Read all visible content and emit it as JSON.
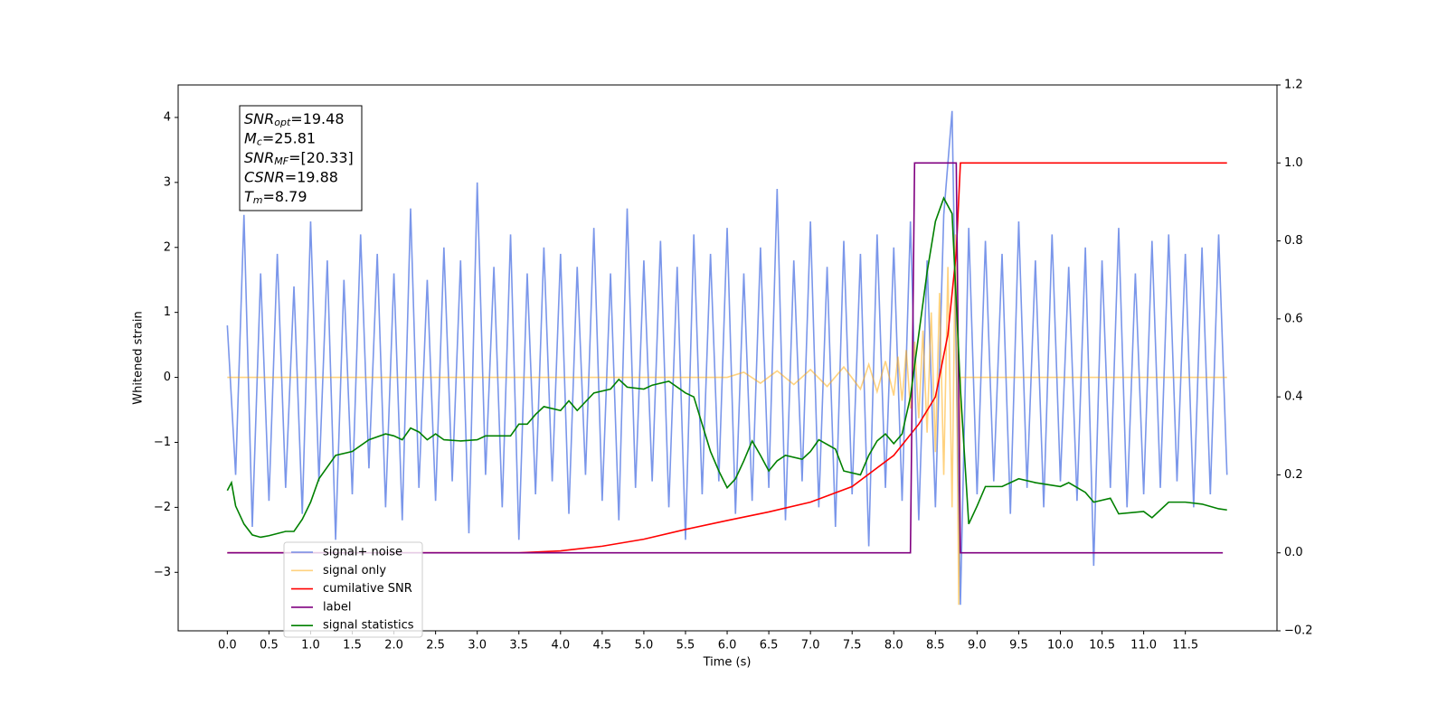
{
  "chart_data": {
    "type": "line",
    "xlabel": "Time (s)",
    "ylabel": "Whitened strain",
    "xlim": [
      -0.59,
      12.6
    ],
    "ylim": [
      -3.9,
      4.5
    ],
    "y2lim": [
      -0.2,
      1.2
    ],
    "xticks": [
      {
        "value": 0,
        "label": "0.0"
      },
      0.5,
      {
        "value": 1,
        "label": "1.0"
      },
      1.5,
      {
        "value": 2,
        "label": "2.0"
      },
      2.5,
      {
        "value": 3,
        "label": "3.0"
      },
      3.5,
      {
        "value": 4,
        "label": "4.0"
      },
      4.5,
      {
        "value": 5,
        "label": "5.0"
      },
      5.5,
      {
        "value": 6,
        "label": "6.0"
      },
      6.5,
      {
        "value": 7,
        "label": "7.0"
      },
      7.5,
      {
        "value": 8,
        "label": "8.0"
      },
      8.5,
      {
        "value": 9,
        "label": "9.0"
      },
      9.5,
      {
        "value": 10,
        "label": "10.0"
      },
      10.5,
      {
        "value": 11,
        "label": "11.0"
      },
      11.5
    ],
    "yticks": [
      {
        "value": -3,
        "label": "−3"
      },
      {
        "value": -2,
        "label": "−2"
      },
      {
        "value": -1,
        "label": "−1"
      },
      0,
      1,
      2,
      3,
      4
    ],
    "y2ticks": [
      {
        "value": -0.2,
        "label": "−0.2"
      },
      {
        "value": 0,
        "label": "0.0"
      },
      0.2,
      0.4,
      0.6,
      0.8,
      {
        "value": 1,
        "label": "1.0"
      },
      1.2
    ],
    "legend": "lower left",
    "annotation": [
      {
        "symbol": "SNR",
        "sub": "opt",
        "text": "=19.48"
      },
      {
        "symbol": "M",
        "sub": "c",
        "text": "=25.81"
      },
      {
        "symbol": "SNR",
        "sub": "MF",
        "text": "=[20.33]"
      },
      {
        "symbol": "CSNR",
        "text": "=19.88"
      },
      {
        "symbol": "T",
        "sub": "m",
        "text": "=8.79"
      }
    ],
    "series": [
      {
        "name": "signal+ noise",
        "color": "#4169e1",
        "alpha": 0.7,
        "x": [
          0,
          0.1,
          0.2,
          0.3,
          0.4,
          0.5,
          0.6,
          0.7,
          0.8,
          0.9,
          1,
          1.1,
          1.2,
          1.3,
          1.4,
          1.5,
          1.6,
          1.7,
          1.8,
          1.9,
          2,
          2.1,
          2.2,
          2.3,
          2.4,
          2.5,
          2.6,
          2.7,
          2.8,
          2.9,
          3,
          3.1,
          3.2,
          3.3,
          3.4,
          3.5,
          3.6,
          3.7,
          3.8,
          3.9,
          4,
          4.1,
          4.2,
          4.3,
          4.4,
          4.5,
          4.6,
          4.7,
          4.8,
          4.9,
          5,
          5.1,
          5.2,
          5.3,
          5.4,
          5.5,
          5.6,
          5.7,
          5.8,
          5.9,
          6,
          6.1,
          6.2,
          6.3,
          6.4,
          6.5,
          6.6,
          6.7,
          6.8,
          6.9,
          7,
          7.1,
          7.2,
          7.3,
          7.4,
          7.5,
          7.6,
          7.7,
          7.8,
          7.9,
          8,
          8.1,
          8.2,
          8.3,
          8.4,
          8.5,
          8.6,
          8.7,
          8.8,
          8.9,
          9,
          9.1,
          9.2,
          9.3,
          9.4,
          9.5,
          9.6,
          9.7,
          9.8,
          9.9,
          10,
          10.1,
          10.2,
          10.3,
          10.4,
          10.5,
          10.6,
          10.7,
          10.8,
          10.9,
          11,
          11.1,
          11.2,
          11.3,
          11.4,
          11.5,
          11.6,
          11.7,
          11.8,
          11.9,
          12
        ],
        "values": [
          0.8,
          -1.5,
          2.5,
          -2.3,
          1.6,
          -1.9,
          1.9,
          -1.7,
          1.4,
          -2.1,
          2.4,
          -1.6,
          1.8,
          -2.5,
          1.5,
          -1.8,
          2.2,
          -1.4,
          1.9,
          -2.0,
          1.6,
          -2.2,
          2.6,
          -1.7,
          1.5,
          -1.9,
          2.0,
          -1.6,
          1.8,
          -2.4,
          3.0,
          -1.5,
          1.7,
          -2.0,
          2.2,
          -2.5,
          1.6,
          -1.8,
          2.0,
          -1.6,
          1.9,
          -2.1,
          1.7,
          -1.5,
          2.3,
          -1.9,
          1.6,
          -2.2,
          2.6,
          -1.7,
          1.8,
          -1.6,
          2.1,
          -2.0,
          1.7,
          -2.5,
          2.2,
          -1.8,
          1.9,
          -1.6,
          2.3,
          -2.1,
          1.6,
          -1.9,
          2.0,
          -1.7,
          2.9,
          -2.2,
          1.8,
          -1.6,
          2.4,
          -2.0,
          1.7,
          -2.3,
          2.1,
          -1.8,
          1.9,
          -2.6,
          2.2,
          -1.7,
          2.0,
          -1.9,
          2.4,
          -2.2,
          1.8,
          -2.0,
          2.5,
          4.1,
          -3.5,
          2.3,
          -1.8,
          2.1,
          -1.6,
          1.9,
          -2.1,
          2.4,
          -1.7,
          1.8,
          -2.0,
          2.2,
          -1.6,
          1.7,
          -1.9,
          2.0,
          -2.9,
          1.8,
          -1.7,
          2.3,
          -2.0,
          1.6,
          -1.8,
          2.1,
          -1.7,
          2.2,
          -1.6,
          1.9,
          -2.0,
          2.0,
          -1.8,
          2.2,
          -1.5
        ]
      },
      {
        "name": "signal only",
        "color": "#ffa500",
        "alpha": 0.5,
        "x": [
          0,
          6.0,
          6.2,
          6.4,
          6.6,
          6.8,
          7.0,
          7.2,
          7.4,
          7.6,
          7.7,
          7.8,
          7.9,
          8.0,
          8.05,
          8.1,
          8.15,
          8.2,
          8.25,
          8.3,
          8.35,
          8.4,
          8.45,
          8.5,
          8.55,
          8.6,
          8.65,
          8.7,
          8.74,
          8.78,
          8.8,
          12.0
        ],
        "values": [
          0,
          0,
          0.08,
          -0.09,
          0.1,
          -0.11,
          0.12,
          -0.14,
          0.16,
          -0.18,
          0.2,
          -0.22,
          0.25,
          -0.28,
          0.32,
          -0.36,
          0.42,
          -0.48,
          0.55,
          -0.63,
          0.72,
          -0.85,
          1.0,
          -1.15,
          1.3,
          -1.5,
          1.7,
          -2.0,
          2.2,
          -3.5,
          0,
          0
        ]
      },
      {
        "name": "cumilative SNR",
        "color": "#ff0000",
        "alpha": 1,
        "axis": "y2",
        "x": [
          0,
          3.5,
          4.0,
          4.5,
          5.0,
          5.5,
          6.0,
          6.5,
          7.0,
          7.5,
          8.0,
          8.3,
          8.5,
          8.65,
          8.75,
          8.8,
          12.0
        ],
        "values": [
          0,
          0,
          0.005,
          0.017,
          0.035,
          0.06,
          0.083,
          0.105,
          0.13,
          0.17,
          0.25,
          0.33,
          0.4,
          0.56,
          0.77,
          1.0,
          1.0
        ]
      },
      {
        "name": "label",
        "color": "#800080",
        "alpha": 1,
        "axis": "y2",
        "x": [
          0,
          8.2,
          8.25,
          8.75,
          8.8,
          11.95
        ],
        "values": [
          0,
          0,
          1,
          1,
          0,
          0
        ]
      },
      {
        "name": "signal statistics",
        "color": "#008000",
        "alpha": 1,
        "axis": "y2",
        "x": [
          0,
          0.05,
          0.1,
          0.2,
          0.3,
          0.4,
          0.5,
          0.7,
          0.8,
          0.9,
          1.0,
          1.1,
          1.2,
          1.3,
          1.5,
          1.7,
          1.9,
          2.0,
          2.1,
          2.2,
          2.3,
          2.4,
          2.5,
          2.6,
          2.8,
          3.0,
          3.1,
          3.4,
          3.5,
          3.6,
          3.7,
          3.8,
          4.0,
          4.1,
          4.2,
          4.4,
          4.6,
          4.7,
          4.8,
          5.0,
          5.1,
          5.3,
          5.5,
          5.6,
          5.7,
          5.8,
          5.9,
          6.0,
          6.1,
          6.2,
          6.3,
          6.4,
          6.5,
          6.6,
          6.7,
          6.9,
          7.0,
          7.1,
          7.3,
          7.4,
          7.6,
          7.7,
          7.8,
          7.9,
          8.0,
          8.1,
          8.2,
          8.3,
          8.4,
          8.5,
          8.6,
          8.7,
          8.8,
          8.9,
          9.0,
          9.1,
          9.3,
          9.5,
          9.7,
          10.0,
          10.1,
          10.3,
          10.4,
          10.6,
          10.7,
          11.0,
          11.1,
          11.3,
          11.5,
          11.7,
          11.9,
          12.0
        ],
        "values": [
          0.16,
          0.18,
          0.12,
          0.074,
          0.046,
          0.04,
          0.044,
          0.055,
          0.055,
          0.086,
          0.13,
          0.19,
          0.22,
          0.25,
          0.26,
          0.29,
          0.305,
          0.3,
          0.29,
          0.32,
          0.31,
          0.29,
          0.305,
          0.29,
          0.287,
          0.29,
          0.3,
          0.3,
          0.33,
          0.33,
          0.355,
          0.375,
          0.365,
          0.39,
          0.365,
          0.41,
          0.42,
          0.445,
          0.425,
          0.42,
          0.43,
          0.44,
          0.41,
          0.4,
          0.33,
          0.26,
          0.21,
          0.167,
          0.19,
          0.236,
          0.287,
          0.25,
          0.21,
          0.236,
          0.25,
          0.24,
          0.26,
          0.29,
          0.266,
          0.21,
          0.2,
          0.25,
          0.287,
          0.305,
          0.28,
          0.305,
          0.4,
          0.56,
          0.72,
          0.85,
          0.91,
          0.87,
          0.42,
          0.074,
          0.12,
          0.17,
          0.17,
          0.19,
          0.18,
          0.17,
          0.18,
          0.155,
          0.13,
          0.14,
          0.1,
          0.106,
          0.09,
          0.13,
          0.13,
          0.125,
          0.113,
          0.11
        ]
      }
    ]
  }
}
